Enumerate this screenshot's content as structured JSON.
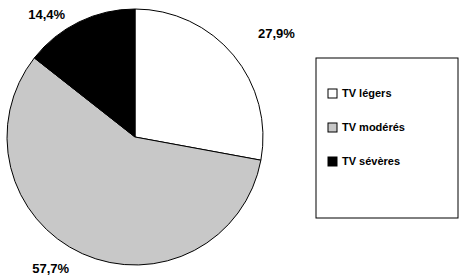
{
  "chart_data": {
    "type": "pie",
    "categories": [
      "TV légers",
      "TV modérés",
      "TV sévères"
    ],
    "values": [
      27.9,
      57.7,
      14.4
    ],
    "value_labels": [
      "27,9%",
      "57,7%",
      "14,4%"
    ],
    "colors": [
      "#ffffff",
      "#c8c8c8",
      "#000000"
    ],
    "data_labels": true,
    "legend": "right"
  }
}
